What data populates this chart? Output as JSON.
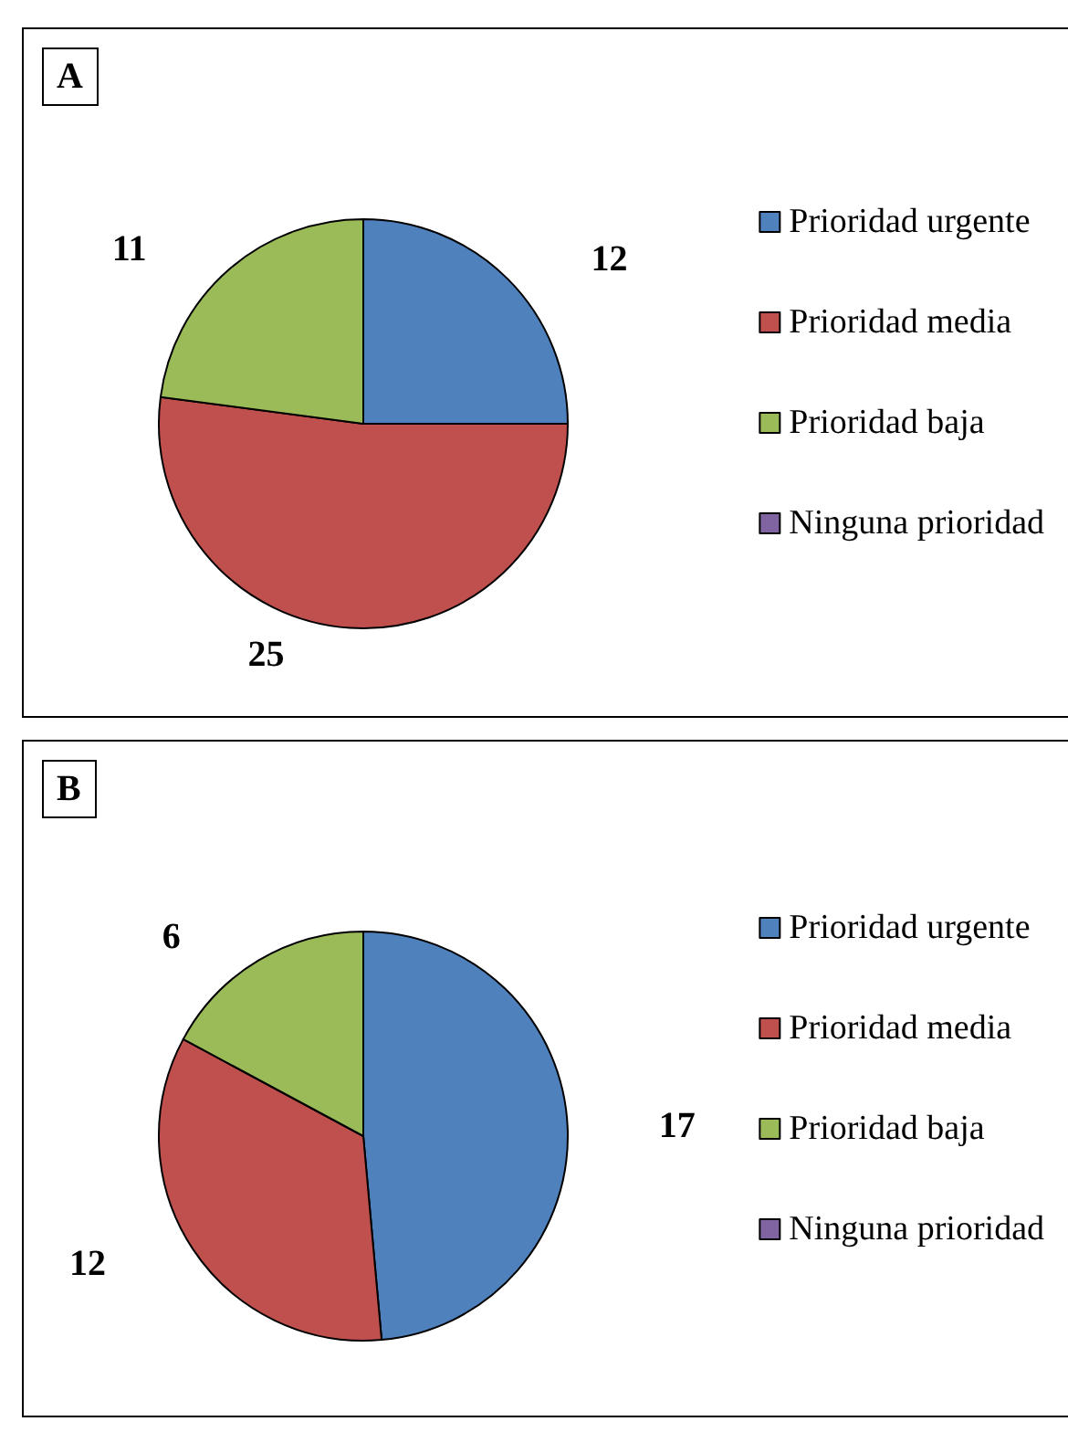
{
  "chart_data": [
    {
      "type": "pie",
      "title": "A",
      "categories": [
        "Prioridad urgente",
        "Prioridad media",
        "Prioridad baja",
        "Ninguna prioridad"
      ],
      "values": [
        12,
        25,
        11,
        0
      ],
      "value_labels": [
        "12",
        "25",
        "11",
        null
      ],
      "colors": [
        "#4f81bd",
        "#c0504d",
        "#9bbb59",
        "#8064a2"
      ],
      "legend": "right"
    },
    {
      "type": "pie",
      "title": "B",
      "categories": [
        "Prioridad urgente",
        "Prioridad media",
        "Prioridad baja",
        "Ninguna prioridad"
      ],
      "values": [
        17,
        12,
        6,
        0
      ],
      "value_labels": [
        "17",
        "12",
        "6",
        null
      ],
      "colors": [
        "#4f81bd",
        "#c0504d",
        "#9bbb59",
        "#8064a2"
      ],
      "legend": "right"
    }
  ]
}
